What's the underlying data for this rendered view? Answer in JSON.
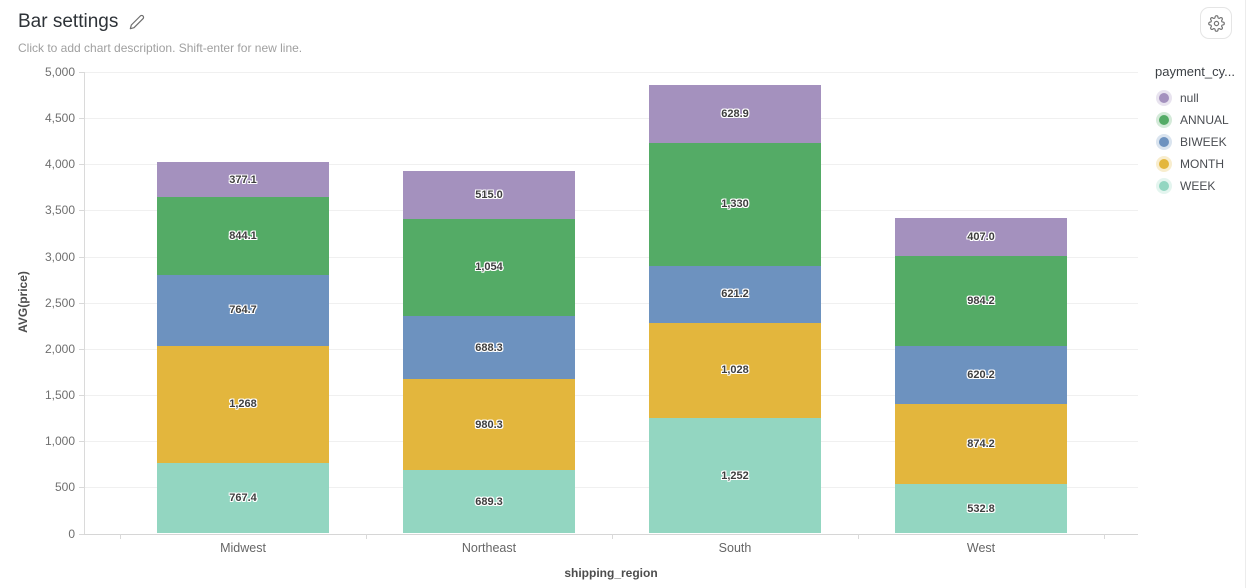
{
  "header": {
    "title": "Bar settings",
    "description_placeholder": "Click to add chart description. Shift-enter for new line."
  },
  "toolbar": {
    "gear_icon": "chart-config-gear"
  },
  "chart_data": {
    "type": "bar",
    "stacked": true,
    "title": "",
    "xlabel": "shipping_region",
    "ylabel": "AVG(price)",
    "ylim": [
      0,
      5000
    ],
    "grid": true,
    "legend_position": "right",
    "legend_title": "payment_cy...",
    "legend_order": [
      "null",
      "ANNUAL",
      "BIWEEK",
      "MONTH",
      "WEEK"
    ],
    "categories": [
      "Midwest",
      "Northeast",
      "South",
      "West"
    ],
    "ytick_values": [
      0,
      500,
      1000,
      1500,
      2000,
      2500,
      3000,
      3500,
      4000,
      4500,
      5000
    ],
    "ytick_labels": [
      "0",
      "500",
      "1,000",
      "1,500",
      "2,000",
      "2,500",
      "3,000",
      "3,500",
      "4,000",
      "4,500",
      "5,000"
    ],
    "series": [
      {
        "name": "WEEK",
        "color": "#93D6C1",
        "values": [
          767.4,
          689.3,
          1252,
          532.8
        ],
        "labels": [
          "767.4",
          "689.3",
          "1,252",
          "532.8"
        ]
      },
      {
        "name": "MONTH",
        "color": "#E3B63D",
        "values": [
          1268,
          980.3,
          1028,
          874.2
        ],
        "labels": [
          "1,268",
          "980.3",
          "1,028",
          "874.2"
        ]
      },
      {
        "name": "BIWEEK",
        "color": "#6D92BF",
        "values": [
          764.7,
          688.3,
          621.2,
          620.2
        ],
        "labels": [
          "764.7",
          "688.3",
          "621.2",
          "620.2"
        ]
      },
      {
        "name": "ANNUAL",
        "color": "#54AB66",
        "values": [
          844.1,
          1054,
          1330,
          984.2
        ],
        "labels": [
          "844.1",
          "1,054",
          "1,330",
          "984.2"
        ]
      },
      {
        "name": "null",
        "color": "#A491BE",
        "values": [
          377.1,
          515.0,
          628.9,
          407.0
        ],
        "labels": [
          "377.1",
          "515.0",
          "628.9",
          "407.0"
        ]
      }
    ]
  }
}
